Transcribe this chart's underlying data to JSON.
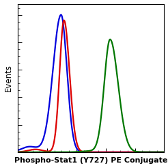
{
  "title": "",
  "xlabel": "Phospho-Stat1 (Y727) PE Conjugate",
  "ylabel": "Events",
  "xlabel_fontsize": 8.0,
  "ylabel_fontsize": 8.5,
  "background_color": "#ffffff",
  "plot_bg_color": "#ffffff",
  "blue_color": "#0000dd",
  "red_color": "#dd0000",
  "green_color": "#007700",
  "xmin": 0.0,
  "xmax": 1.0,
  "ymin": 0.0,
  "ymax": 1.08,
  "linewidth": 1.6
}
